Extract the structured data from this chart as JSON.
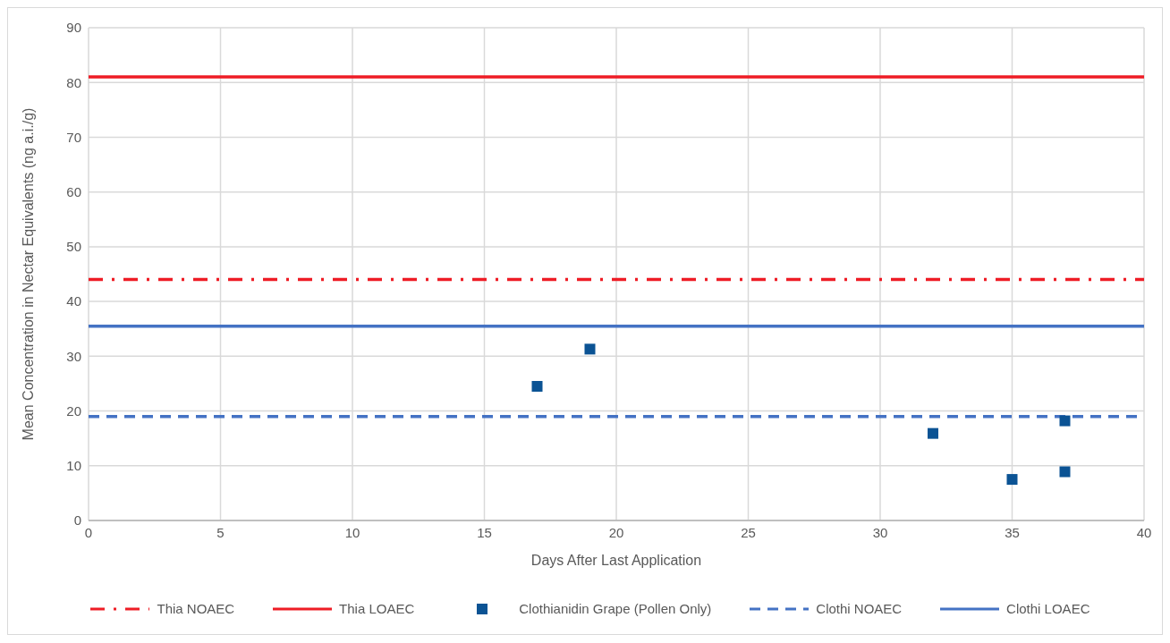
{
  "chart_data": {
    "type": "scatter",
    "xlabel": "Days After Last Application",
    "ylabel": "Mean Concentration in Nectar Equivalents (ng a.i./g)",
    "xlim": [
      0,
      40
    ],
    "xticks": [
      0,
      5,
      10,
      15,
      20,
      25,
      30,
      35,
      40
    ],
    "ylim": [
      0,
      90
    ],
    "yticks": [
      0,
      10,
      20,
      30,
      40,
      50,
      60,
      70,
      80,
      90
    ],
    "grid": true,
    "legend": "bottom",
    "series": [
      {
        "name": "Thia NOAEC",
        "type": "line",
        "color": "#ee1c25",
        "line_style": "dashdot",
        "marker": "none",
        "x": [
          0,
          40
        ],
        "values": [
          44,
          44
        ]
      },
      {
        "name": "Thia LOAEC",
        "type": "line",
        "color": "#ee1c25",
        "line_style": "solid",
        "marker": "none",
        "x": [
          0,
          40
        ],
        "values": [
          81,
          81
        ]
      },
      {
        "name": "Clothianidin Grape (Pollen Only)",
        "color": "#0b5394",
        "marker": "square",
        "x": [
          17,
          19,
          32,
          35,
          37,
          37
        ],
        "values": [
          24.5,
          31.3,
          15.9,
          7.5,
          8.9,
          18.2
        ]
      },
      {
        "name": "Clothi NOAEC",
        "type": "line",
        "color": "#4472c4",
        "line_style": "dashed",
        "marker": "none",
        "x": [
          0,
          40
        ],
        "values": [
          19,
          19
        ]
      },
      {
        "name": "Clothi LOAEC",
        "type": "line",
        "color": "#4472c4",
        "line_style": "solid",
        "marker": "none",
        "x": [
          0,
          40
        ],
        "values": [
          35.5,
          35.5
        ]
      }
    ]
  }
}
